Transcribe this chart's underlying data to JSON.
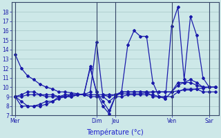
{
  "background_color": "#cde8e8",
  "grid_color": "#b0d0d0",
  "line_color": "#1a1aaa",
  "xlabel": "Température (°c)",
  "xlabel_color": "#1a1acc",
  "tick_color": "#1a1aaa",
  "ylim": [
    7,
    19
  ],
  "yticks": [
    7,
    8,
    9,
    10,
    11,
    12,
    13,
    14,
    15,
    16,
    17,
    18
  ],
  "day_labels": [
    "Mer",
    "Dim",
    "Jeu",
    "Ven",
    "Sar"
  ],
  "day_positions": [
    0,
    13,
    16,
    25,
    31
  ],
  "n_points": 33,
  "lines": [
    [
      13.5,
      12.0,
      11.2,
      10.8,
      10.3,
      10.0,
      9.8,
      9.5,
      9.5,
      9.4,
      9.3,
      9.2,
      9.2,
      9.2,
      9.2,
      9.2,
      9.2,
      9.3,
      9.3,
      9.3,
      9.3,
      9.4,
      9.5,
      9.5,
      9.5,
      9.5,
      9.6,
      9.7,
      9.7,
      9.8,
      9.9,
      10.0,
      10.0
    ],
    [
      9.0,
      8.0,
      8.0,
      8.0,
      8.2,
      8.5,
      8.5,
      9.0,
      9.2,
      9.2,
      9.2,
      9.2,
      12.2,
      9.5,
      8.0,
      7.2,
      9.0,
      9.5,
      14.5,
      16.0,
      15.4,
      15.4,
      10.5,
      9.0,
      8.8,
      16.5,
      18.5,
      10.8,
      17.5,
      15.5,
      11.0,
      10.0,
      10.0
    ],
    [
      9.0,
      8.5,
      8.0,
      8.0,
      8.0,
      8.2,
      8.5,
      8.8,
      9.0,
      9.2,
      9.2,
      9.2,
      9.0,
      9.0,
      9.0,
      8.5,
      9.0,
      9.0,
      9.2,
      9.2,
      9.2,
      9.2,
      9.2,
      9.0,
      9.0,
      9.0,
      9.5,
      9.8,
      9.8,
      9.8,
      9.5,
      9.5,
      9.5
    ],
    [
      9.0,
      9.0,
      9.2,
      9.2,
      9.2,
      9.2,
      9.2,
      9.0,
      9.0,
      9.0,
      9.2,
      9.2,
      9.5,
      14.8,
      9.2,
      9.0,
      9.2,
      9.5,
      9.5,
      9.5,
      9.5,
      9.5,
      9.5,
      9.5,
      9.5,
      9.5,
      10.2,
      10.5,
      10.5,
      10.2,
      10.0,
      10.0,
      10.0
    ],
    [
      9.0,
      9.2,
      9.5,
      9.5,
      9.2,
      9.0,
      9.0,
      9.0,
      9.0,
      9.0,
      9.2,
      9.3,
      12.0,
      9.5,
      8.5,
      7.5,
      9.0,
      9.5,
      9.5,
      9.5,
      9.5,
      9.5,
      9.0,
      9.0,
      8.8,
      9.5,
      10.5,
      10.5,
      10.8,
      10.5,
      10.0,
      10.0,
      10.0
    ]
  ]
}
